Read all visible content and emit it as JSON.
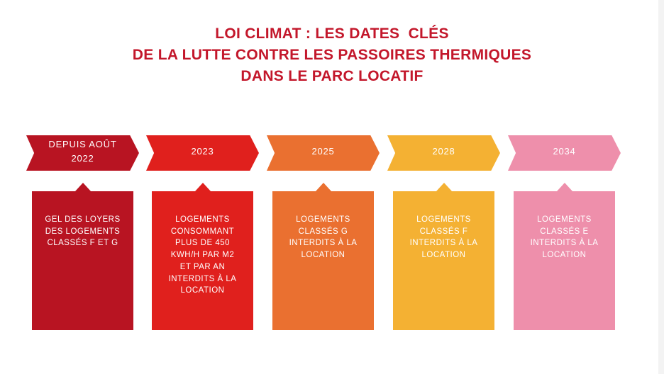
{
  "title": [
    "LOI CLIMAT : LES DATES  CLÉS",
    "DE LA LUTTE CONTRE LES PASSOIRES THERMIQUES",
    "DANS LE PARC LOCATIF"
  ],
  "steps": [
    {
      "date": [
        "DEPUIS AOÛT",
        "2022"
      ],
      "text": [
        "GEL DES LOYERS",
        "DES LOGEMENTS",
        "CLASSÉS F ET G"
      ],
      "color": "#b81422"
    },
    {
      "date": [
        "2023"
      ],
      "text": [
        "LOGEMENTS",
        "CONSOMMANT",
        "PLUS DE 450",
        "KWH/H PAR M2",
        "ET PAR AN",
        "INTERDITS À LA",
        "LOCATION"
      ],
      "color": "#e0201d"
    },
    {
      "date": [
        "2025"
      ],
      "text": [
        "LOGEMENTS",
        "CLASSÉS G",
        "INTERDITS À LA",
        "LOCATION"
      ],
      "color": "#ea7030"
    },
    {
      "date": [
        "2028"
      ],
      "text": [
        "LOGEMENTS",
        "CLASSÉS F",
        "INTERDITS À LA",
        "LOCATION"
      ],
      "color": "#f4b133"
    },
    {
      "date": [
        "2034"
      ],
      "text": [
        "LOGEMENTS",
        "CLASSÉS E",
        "INTERDITS À LA",
        "LOCATION"
      ],
      "color": "#ee8fab"
    }
  ]
}
